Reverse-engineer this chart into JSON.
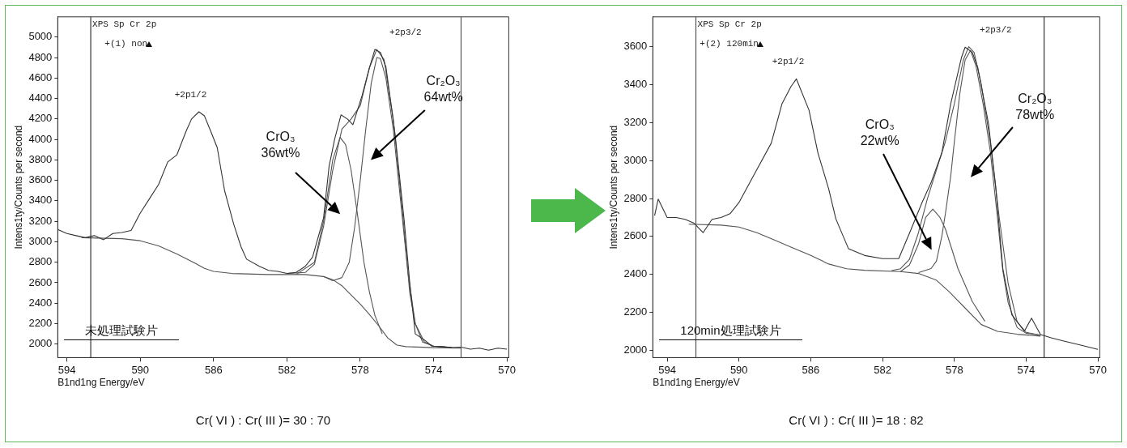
{
  "chart_data": [
    {
      "type": "line",
      "title": "XPS Sp Cr 2p",
      "subtitle": "+(1) non",
      "xlabel": "B1nd1ng Energy/eV",
      "ylabel": "Intens1ty/Counts per second",
      "marker": "none",
      "line_style": "solid",
      "grid": false,
      "xlim": [
        594.5,
        569.9
      ],
      "xticks": [
        594,
        590,
        586,
        582,
        578,
        574,
        570
      ],
      "ylim": [
        1868,
        5198
      ],
      "yticks": [
        2000,
        2200,
        2400,
        2600,
        2800,
        3000,
        3200,
        3400,
        3600,
        3800,
        4000,
        4200,
        4400,
        4600,
        4800,
        5000
      ],
      "series": [
        {
          "color": "#333333",
          "x": [
            594.5,
            594.0,
            593.5,
            593.0,
            592.5,
            592.0,
            591.5,
            591.0,
            590.5,
            590.0,
            589.5,
            589.0,
            588.5,
            588.0,
            587.5,
            587.2,
            586.8,
            586.5,
            586.2,
            585.8,
            585.4,
            584.9,
            584.5,
            584.2,
            583.5,
            583.0,
            582.5,
            582.0,
            581.5,
            581.0,
            580.6,
            580.0,
            579.7,
            579.4,
            579.05,
            578.7,
            578.4,
            577.9,
            577.5,
            577.2,
            576.9,
            576.6,
            576.1,
            575.6,
            575.3,
            575.0,
            574.5,
            574.1,
            573.5,
            573.0,
            572.5,
            572.0,
            571.5,
            571.0,
            570.5,
            570.0
          ],
          "values": [
            3120,
            3080,
            3060,
            3040,
            3060,
            3020,
            3080,
            3090,
            3110,
            3280,
            3420,
            3560,
            3780,
            3850,
            4080,
            4200,
            4270,
            4230,
            4100,
            3920,
            3500,
            3170,
            2950,
            2830,
            2760,
            2720,
            2710,
            2690,
            2700,
            2760,
            2850,
            3234,
            3737,
            4000,
            4240,
            4200,
            4145,
            4430,
            4700,
            4880,
            4850,
            4710,
            4050,
            3200,
            2600,
            2100,
            2040,
            1980,
            1975,
            1965,
            1970,
            1950,
            1960,
            1940,
            1960,
            1950
          ]
        },
        {
          "color": "#555555",
          "x": [
            582.0,
            581.0,
            580.5,
            580.0,
            579.5,
            579.0,
            578.5,
            578.0,
            577.5,
            577.1,
            576.7,
            576.2,
            575.7,
            575.3,
            575.0,
            574.5,
            574.0,
            573.0
          ],
          "values": [
            2690,
            2700,
            2780,
            3150,
            3700,
            4100,
            4200,
            4330,
            4700,
            4880,
            4780,
            4200,
            3300,
            2500,
            2200,
            2020,
            1980,
            1965
          ]
        },
        {
          "color": "#555555",
          "x": [
            593.2,
            591.0,
            590.0,
            589.0,
            588.0,
            587.0,
            586.5,
            586.0,
            585.0,
            583.0,
            581.0,
            580.0,
            579.5,
            579.0,
            578.5,
            578.0,
            577.5,
            577.0,
            576.5,
            576.0,
            575.5,
            574.0,
            572.5
          ],
          "values": [
            3040,
            3030,
            3010,
            2960,
            2880,
            2790,
            2740,
            2710,
            2690,
            2680,
            2680,
            2660,
            2630,
            2570,
            2480,
            2390,
            2290,
            2180,
            2060,
            1990,
            1975,
            1965,
            1960
          ]
        },
        {
          "color": "#555555",
          "x": [
            581.5,
            580.5,
            580.0,
            579.5,
            579.1,
            578.8,
            578.5,
            578.15,
            577.8,
            577.5,
            577.2,
            576.8
          ],
          "values": [
            2680,
            2800,
            3200,
            3800,
            4020,
            3950,
            3700,
            3266,
            2800,
            2510,
            2280,
            2100
          ]
        },
        {
          "color": "#555555",
          "x": [
            580.0,
            579.5,
            579.0,
            578.6,
            578.3,
            578.0,
            577.7,
            577.4,
            577.1,
            576.9,
            576.6,
            576.2,
            575.8,
            575.4,
            575.0,
            574.6,
            574.0,
            573.0
          ],
          "values": [
            2660,
            2620,
            2650,
            2800,
            3150,
            3600,
            4100,
            4550,
            4800,
            4790,
            4600,
            4100,
            3400,
            2700,
            2200,
            2020,
            1980,
            1965
          ]
        }
      ],
      "ref_lines": [
        {
          "axis": "x",
          "value": 592.7,
          "color": "#333333"
        },
        {
          "axis": "x",
          "value": 572.5,
          "color": "#555555"
        }
      ],
      "annotations": [
        {
          "text": "+2p1/2",
          "x": 586.8,
          "y": 4270
        },
        {
          "text": "+2p3/2",
          "x": 577.2,
          "y": 4880
        },
        "CrO₃\n36wt%",
        "Cr₂O₃\n64wt%",
        "未処理試験片",
        "Cr( VI ) : Cr( III )= 30 : 70"
      ]
    },
    {
      "type": "line",
      "title": "XPS Sp Cr 2p",
      "subtitle": "+(2) 120min",
      "xlabel": "B1nd1ng Energy/eV",
      "ylabel": "Intens1ty/Counts per second",
      "marker": "none",
      "line_style": "solid",
      "grid": false,
      "xlim": [
        594.8,
        569.9
      ],
      "xticks": [
        594,
        590,
        586,
        582,
        578,
        574,
        570
      ],
      "ylim": [
        1962,
        3757
      ],
      "yticks": [
        2000,
        2200,
        2400,
        2600,
        2800,
        3000,
        3200,
        3400,
        3600
      ],
      "series": [
        {
          "color": "#333333",
          "x": [
            594.7,
            594.5,
            594.0,
            593.5,
            593.0,
            592.5,
            592.0,
            591.5,
            591.0,
            590.5,
            590.0,
            589.1,
            588.2,
            587.6,
            587.1,
            586.8,
            586.1,
            585.6,
            585.0,
            584.6,
            583.9,
            583.0,
            582.0,
            581.1,
            580.4,
            579.8,
            579.3,
            578.7,
            578.2,
            577.6,
            577.4,
            577.0,
            576.7,
            576.1,
            575.7,
            575.3,
            574.8,
            574.1,
            573.7,
            573.2,
            572.6,
            571.9,
            571.1,
            570.0
          ],
          "values": [
            2710,
            2797,
            2700,
            2700,
            2690,
            2670,
            2620,
            2690,
            2700,
            2720,
            2779,
            2936,
            3092,
            3300,
            3390,
            3430,
            3266,
            3040,
            2850,
            2692,
            2536,
            2500,
            2483,
            2483,
            2640,
            2779,
            2883,
            3040,
            3300,
            3544,
            3597,
            3570,
            3492,
            3196,
            2866,
            2431,
            2188,
            2101,
            2170,
            2083,
            2066,
            2049,
            2031,
            2005
          ]
        },
        {
          "color": "#555555",
          "x": [
            581.5,
            581.0,
            580.5,
            580.0,
            579.5,
            579.0,
            578.5,
            578.0,
            577.5,
            577.2,
            576.9,
            576.5,
            576.0,
            575.5,
            575.0,
            574.5,
            574.0,
            573.2
          ],
          "values": [
            2420,
            2430,
            2480,
            2620,
            2800,
            2950,
            3100,
            3300,
            3530,
            3600,
            3570,
            3400,
            3100,
            2700,
            2350,
            2150,
            2095,
            2080
          ]
        },
        {
          "color": "#555555",
          "x": [
            592.8,
            591.0,
            590.0,
            589.0,
            588.0,
            587.0,
            586.0,
            585.0,
            584.0,
            583.0,
            581.0,
            580.0,
            579.0,
            578.3,
            577.4,
            576.5,
            575.6,
            574.5,
            573.2
          ],
          "values": [
            2665,
            2660,
            2650,
            2620,
            2580,
            2540,
            2500,
            2455,
            2430,
            2422,
            2415,
            2405,
            2370,
            2310,
            2223,
            2136,
            2100,
            2085,
            2075
          ]
        },
        {
          "color": "#555555",
          "x": [
            581.0,
            580.5,
            580.0,
            579.6,
            579.2,
            578.8,
            578.5,
            577.8,
            577.0,
            576.3
          ],
          "values": [
            2415,
            2450,
            2560,
            2700,
            2744,
            2700,
            2640,
            2431,
            2257,
            2153
          ]
        },
        {
          "color": "#555555",
          "x": [
            580.0,
            579.3,
            579.0,
            578.7,
            578.5,
            578.2,
            578.0,
            577.7,
            577.4,
            577.1,
            576.8,
            576.4,
            576.0,
            575.6,
            575.3,
            575.0,
            574.5,
            574.0,
            573.2
          ],
          "values": [
            2410,
            2431,
            2470,
            2600,
            2720,
            2920,
            3100,
            3350,
            3530,
            3580,
            3500,
            3300,
            3050,
            2700,
            2420,
            2250,
            2120,
            2090,
            2080
          ]
        }
      ],
      "ref_lines": [
        {
          "axis": "x",
          "value": 592.4,
          "color": "#555555"
        },
        {
          "axis": "x",
          "value": 573.0,
          "color": "#333333"
        }
      ],
      "annotations": [
        {
          "text": "+2p1/2",
          "x": 586.8,
          "y": 3430
        },
        {
          "text": "+2p3/2",
          "x": 577.4,
          "y": 3597
        },
        "CrO₃\n22wt%",
        "Cr₂O₃\n78wt%",
        "120min処理試験片",
        "Cr( VI ) : Cr( III )= 18 : 82"
      ]
    }
  ]
}
